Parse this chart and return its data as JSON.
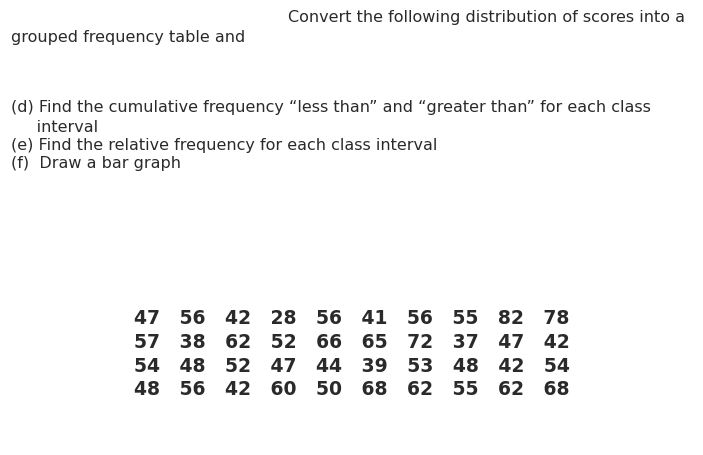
{
  "background_color": "#ffffff",
  "title_line1": "Convert the following distribution of scores into a",
  "title_line2": "grouped frequency table and",
  "item_d": "(d) Find the cumulative frequency “less than” and “greater than” for each class",
  "item_d2": "     interval",
  "item_e": "(e) Find the relative frequency for each class interval",
  "item_f": "(f)  Draw a bar graph",
  "data_rows": [
    "47   56   42   28   56   41   56   55   82   78",
    "57   38   62   52   66   65   72   37   47   42",
    "54   48   52   47   44   39   53   48   42   54",
    "48   56   42   60   50   68   62   55   62   68"
  ],
  "title_fontsize": 11.5,
  "body_fontsize": 11.5,
  "data_fontsize": 13.5,
  "text_color": "#2a2a2a"
}
